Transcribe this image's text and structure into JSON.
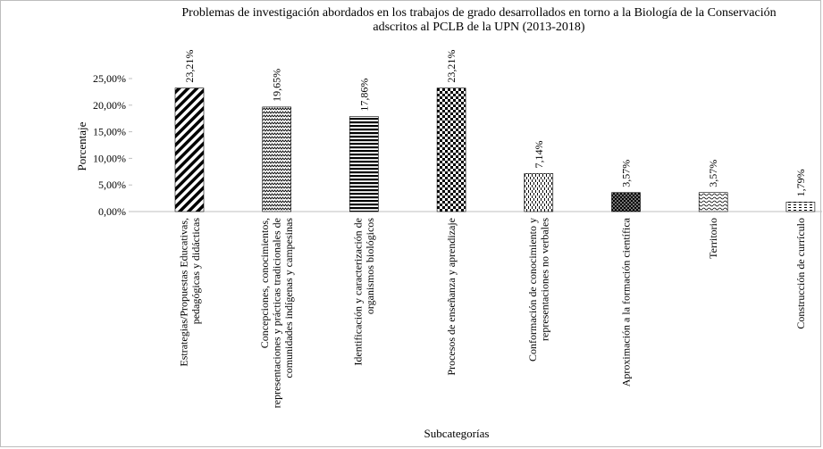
{
  "chart_data": {
    "type": "bar",
    "title": [
      "Problemas de investigación  abordados en los trabajos de grado desarrollados  en torno a la Biología de la Conservación",
      "adscritos al PCLB de la UPN (2013-2018)"
    ],
    "xlabel": "Subcategorías",
    "ylabel": "Porcentaje",
    "ylim": [
      0,
      25
    ],
    "yticks": [
      "0,00%",
      "5,00%",
      "10,00%",
      "15,00%",
      "20,00%",
      "25,00%"
    ],
    "grid": false,
    "legend": "none",
    "categories": [
      [
        "Estrategias/Propuestas Educativas,",
        "pedagógicas y didácticas"
      ],
      [
        "Concepciones, conocimientos,",
        "representaciones y prácticas tradicionales de",
        "comunidades indígenas y campesinas"
      ],
      [
        "Identificación y caracterización de",
        "organismos biológicos"
      ],
      [
        "Procesos de enseñanza y aprendizaje"
      ],
      [
        "Conformación de conocimiento y",
        "representaciones no verbales"
      ],
      [
        "Aproximación a la formación científica"
      ],
      [
        "Territorio"
      ],
      [
        "Construcción de currículo"
      ]
    ],
    "values": [
      23.21,
      19.65,
      17.86,
      23.21,
      7.14,
      3.57,
      3.57,
      1.79
    ],
    "data_labels": [
      "23,21%",
      "19,65%",
      "17,86%",
      "23,21%",
      "7,14%",
      "3,57%",
      "3,57%",
      "1,79%"
    ],
    "patterns": [
      "diagonal",
      "zigzag",
      "horizontal",
      "checker",
      "dashed-vertical",
      "dots",
      "wave",
      "dashed-horizontal"
    ]
  }
}
